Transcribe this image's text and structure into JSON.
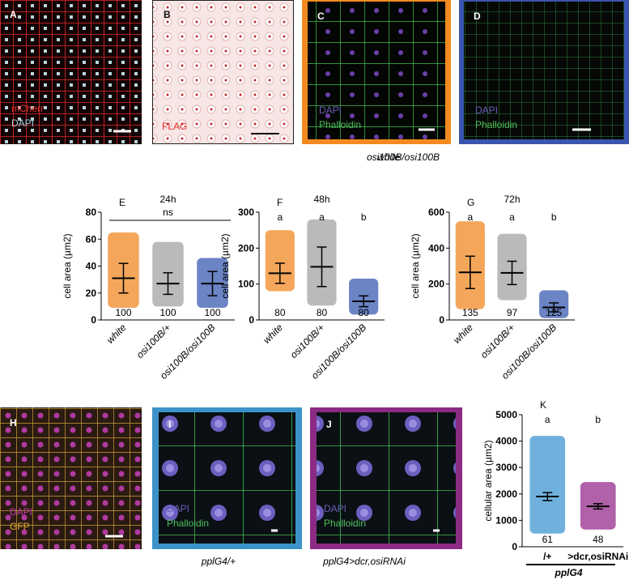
{
  "panels": [
    {
      "letter": "A",
      "labels": [
        "mCherr",
        "DAPI"
      ]
    },
    {
      "letter": "B",
      "labels": [
        "FLAG"
      ]
    },
    {
      "letter": "C",
      "labels": [
        "DAPI",
        "Phalloidin"
      ],
      "caption": "white"
    },
    {
      "letter": "D",
      "labels": [
        "DAPI",
        "Phalloidin"
      ],
      "caption": "osi100B/osi100B"
    },
    {
      "letter": "H",
      "labels": [
        "DAPI",
        "GFP"
      ]
    },
    {
      "letter": "I",
      "labels": [
        "DAPI",
        "Phalloidin"
      ],
      "caption": "pplG4/+"
    },
    {
      "letter": "J",
      "labels": [
        "DAPI",
        "Phalloidin"
      ],
      "caption": "pplG4>dcr,osiRNAi"
    }
  ],
  "chart_data": [
    {
      "type": "dotplot",
      "letter": "E",
      "title": "24h",
      "annotation": "ns",
      "y_label": "cell area (µm2)",
      "categories": [
        "white",
        "osi100B/+",
        "osi100B/osi100B"
      ],
      "colors": [
        "#f08a24",
        "#a3a3a3",
        "#3a5bb0"
      ],
      "values": [
        31,
        27,
        27
      ],
      "error": [
        11,
        8,
        9
      ],
      "min": [
        9,
        10,
        9
      ],
      "max": [
        65,
        58,
        46
      ],
      "n": [
        100,
        100,
        100
      ],
      "ylim": [
        0,
        80
      ],
      "yticks": [
        0,
        20,
        40,
        60,
        80
      ]
    },
    {
      "type": "dotplot",
      "letter": "F",
      "title": "48h",
      "y_label": "cell area (µm2)",
      "categories": [
        "white",
        "osi100B/+",
        "osi100B/osi100B"
      ],
      "colors": [
        "#f08a24",
        "#a3a3a3",
        "#3a5bb0"
      ],
      "values": [
        130,
        148,
        52
      ],
      "error": [
        28,
        55,
        15
      ],
      "min": [
        80,
        40,
        15
      ],
      "max": [
        250,
        280,
        115
      ],
      "group_letters": [
        "a",
        "a",
        "b"
      ],
      "n": [
        80,
        80,
        80
      ],
      "ylim": [
        0,
        300
      ],
      "yticks": [
        0,
        100,
        200,
        300
      ]
    },
    {
      "type": "dotplot",
      "letter": "G",
      "title": "72h",
      "y_label": "cell area (µm2)",
      "categories": [
        "white",
        "osi100B/+",
        "osi100B/osi100B"
      ],
      "colors": [
        "#f08a24",
        "#a3a3a3",
        "#3a5bb0"
      ],
      "values": [
        265,
        262,
        70
      ],
      "error": [
        90,
        65,
        25
      ],
      "min": [
        60,
        110,
        10
      ],
      "max": [
        550,
        480,
        165
      ],
      "group_letters": [
        "a",
        "a",
        "b"
      ],
      "n": [
        135,
        97,
        125
      ],
      "ylim": [
        0,
        600
      ],
      "yticks": [
        0,
        200,
        400,
        600
      ]
    },
    {
      "type": "dotplot",
      "letter": "K",
      "y_label": "cellular area (µm2)",
      "x_label": "pplG4",
      "categories": [
        "/+",
        ">dcr,osiRNAi"
      ],
      "colors": [
        "#3f97d0",
        "#962c8c"
      ],
      "values": [
        1900,
        1530
      ],
      "error": [
        150,
        100
      ],
      "min": [
        500,
        650
      ],
      "max": [
        4200,
        2450
      ],
      "group_letters": [
        "a",
        "b"
      ],
      "n": [
        61,
        48
      ],
      "ylim": [
        0,
        5000
      ],
      "yticks": [
        0,
        1000,
        2000,
        3000,
        4000,
        5000
      ]
    }
  ]
}
